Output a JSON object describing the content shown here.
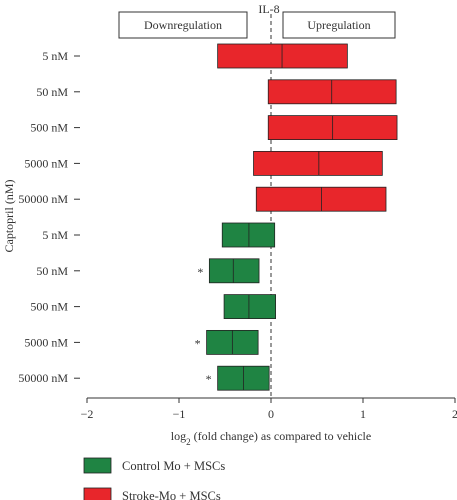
{
  "chart_data": {
    "type": "bar",
    "title": "IL-8",
    "xlabel": "log2 (fold change) as compared to vehicle",
    "ylabel": "Captopril (nM)",
    "xlim": [
      -2,
      2
    ],
    "x_ticks": [
      "-2",
      "-1",
      "0",
      "1",
      "2"
    ],
    "categories": [
      "5 nM",
      "50 nM",
      "500 nM",
      "5000 nM",
      "50000 nM"
    ],
    "reference_line": 0,
    "annotations": {
      "downregulation": "Downregulation",
      "upregulation": "Upregulation",
      "significance_marker": "*"
    },
    "series": [
      {
        "name": "Stroke-Mo + MSCs",
        "color": "#e8262b",
        "ranges": [
          {
            "low": -0.58,
            "mid": 0.12,
            "high": 0.83
          },
          {
            "low": -0.03,
            "mid": 0.66,
            "high": 1.36
          },
          {
            "low": -0.03,
            "mid": 0.67,
            "high": 1.37
          },
          {
            "low": -0.19,
            "mid": 0.52,
            "high": 1.21
          },
          {
            "low": -0.16,
            "mid": 0.55,
            "high": 1.25
          }
        ],
        "significant": [
          false,
          false,
          false,
          false,
          false
        ]
      },
      {
        "name": "Control Mo + MSCs",
        "color": "#1f8443",
        "ranges": [
          {
            "low": -0.53,
            "mid": -0.24,
            "high": 0.04
          },
          {
            "low": -0.67,
            "mid": -0.41,
            "high": -0.13
          },
          {
            "low": -0.51,
            "mid": -0.24,
            "high": 0.05
          },
          {
            "low": -0.7,
            "mid": -0.42,
            "high": -0.14
          },
          {
            "low": -0.58,
            "mid": -0.3,
            "high": -0.02
          }
        ],
        "significant": [
          false,
          true,
          false,
          true,
          true
        ]
      }
    ],
    "legend": {
      "placement": "bottom-left",
      "entries": [
        "Control Mo + MSCs",
        "Stroke-Mo + MSCs"
      ]
    }
  }
}
